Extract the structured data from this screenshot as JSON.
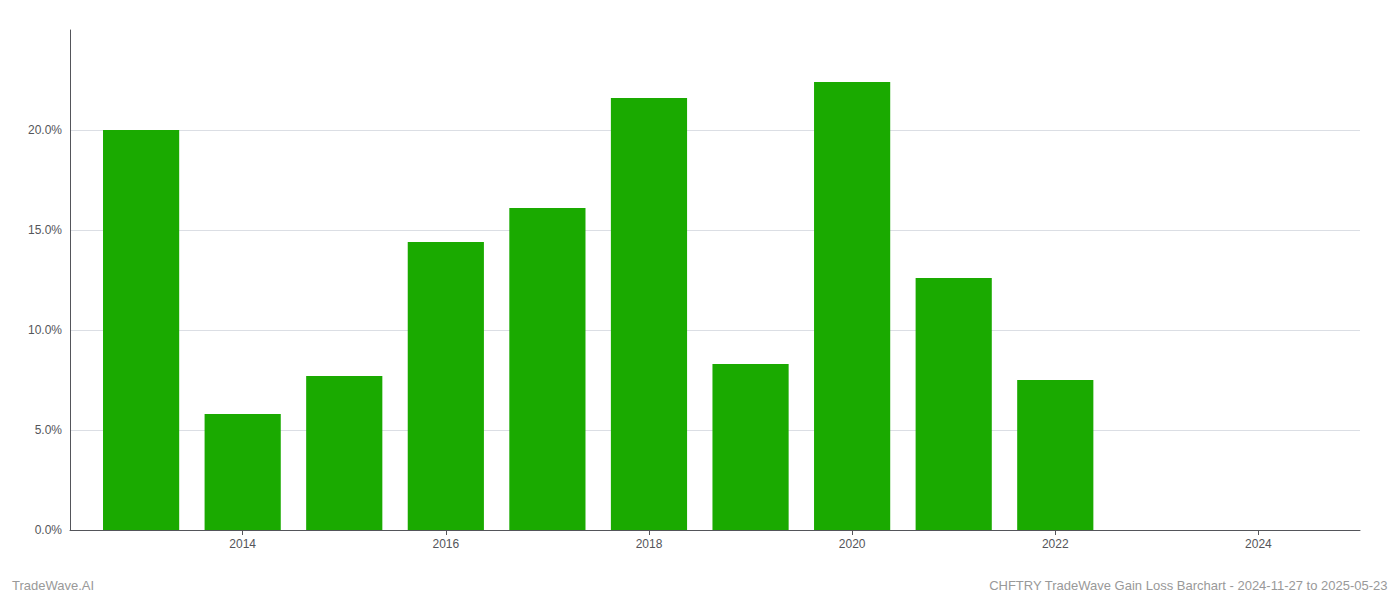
{
  "chart_data": {
    "type": "bar",
    "x": [
      2013,
      2014,
      2015,
      2016,
      2017,
      2018,
      2019,
      2020,
      2021,
      2022
    ],
    "values": [
      0.2,
      0.058,
      0.077,
      0.144,
      0.161,
      0.216,
      0.083,
      0.224,
      0.126,
      0.075
    ],
    "color": "#1aaa00",
    "xlim": [
      2012.3,
      2025.0
    ],
    "xticks": [
      2014,
      2016,
      2018,
      2020,
      2022,
      2024
    ],
    "ylim": [
      0,
      0.25
    ],
    "yticks": [
      {
        "value": 0.0,
        "label": "0.0%"
      },
      {
        "value": 0.05,
        "label": "5.0%"
      },
      {
        "value": 0.1,
        "label": "10.0%"
      },
      {
        "value": 0.15,
        "label": "15.0%"
      },
      {
        "value": 0.2,
        "label": "20.0%"
      }
    ],
    "grid": true,
    "annotations": [
      "TradeWave.AI",
      "CHFTRY TradeWave Gain Loss Barchart - 2024-11-27 to 2025-05-23"
    ]
  }
}
